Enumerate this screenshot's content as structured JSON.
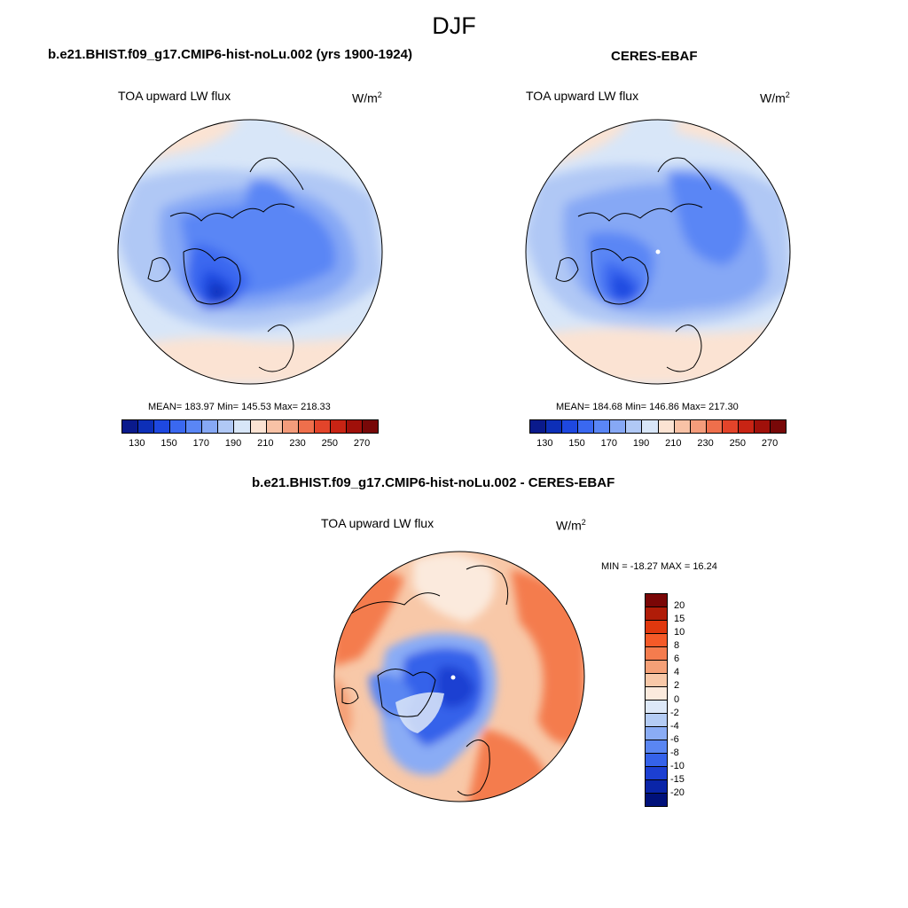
{
  "season": "DJF",
  "panels": [
    {
      "title": "b.e21.BHIST.f09_g17.CMIP6-hist-noLu.002 (yrs 1900-1924)",
      "variable": "TOA upward LW flux",
      "units_base": "W/m",
      "units_exp": "2",
      "stats": "MEAN= 183.97  Min= 145.53  Max= 218.33",
      "mean": 183.97,
      "min": 145.53,
      "max": 218.33
    },
    {
      "title": "CERES-EBAF",
      "variable": "TOA upward LW flux",
      "units_base": "W/m",
      "units_exp": "2",
      "stats": "MEAN= 184.68  Min= 146.86  Max= 217.30",
      "mean": 184.68,
      "min": 146.86,
      "max": 217.3
    }
  ],
  "colorbar": {
    "labels": [
      "130",
      "150",
      "170",
      "190",
      "210",
      "230",
      "250",
      "270"
    ],
    "colors": [
      "#0a1a8c",
      "#0d2fb8",
      "#1e48e0",
      "#3a68f0",
      "#5a86f5",
      "#86a8f5",
      "#b0c8f5",
      "#d8e6f8",
      "#fbe3d3",
      "#f8c2a6",
      "#f49c7b",
      "#ef6f4c",
      "#e3442a",
      "#c82414",
      "#a0100a",
      "#780808"
    ]
  },
  "diff": {
    "title": "b.e21.BHIST.f09_g17.CMIP6-hist-noLu.002 - CERES-EBAF",
    "variable": "TOA upward LW flux",
    "units_base": "W/m",
    "units_exp": "2",
    "stats": "MIN = -18.27 MAX =  16.24",
    "min": -18.27,
    "max": 16.24,
    "colorbar_labels": [
      "20",
      "15",
      "10",
      "8",
      "6",
      "4",
      "2",
      "0",
      "-2",
      "-4",
      "-6",
      "-8",
      "-10",
      "-15",
      "-20"
    ],
    "colorbar_colors": [
      "#7a0606",
      "#b01c08",
      "#e0380e",
      "#f55a28",
      "#f47c4e",
      "#f5a077",
      "#f8c8a8",
      "#fbeadd",
      "#dde8f8",
      "#b4ccf5",
      "#8aacf5",
      "#5a86f2",
      "#3562ea",
      "#1c3fd2",
      "#0a25a8",
      "#00117a"
    ]
  },
  "chart_data": {
    "type": "heatmap",
    "projection": "north polar stereographic",
    "season": "DJF",
    "fields": [
      {
        "name": "b.e21.BHIST.f09_g17.CMIP6-hist-noLu.002 (yrs 1900-1924)",
        "mean": 183.97,
        "min": 145.53,
        "max": 218.33,
        "color_levels": [
          130,
          140,
          150,
          160,
          170,
          180,
          190,
          200,
          210,
          220,
          230,
          240,
          250,
          260,
          270
        ]
      },
      {
        "name": "CERES-EBAF",
        "mean": 184.68,
        "min": 146.86,
        "max": 217.3,
        "color_levels": [
          130,
          140,
          150,
          160,
          170,
          180,
          190,
          200,
          210,
          220,
          230,
          240,
          250,
          260,
          270
        ]
      },
      {
        "name": "b.e21.BHIST.f09_g17.CMIP6-hist-noLu.002 - CERES-EBAF",
        "min": -18.27,
        "max": 16.24,
        "color_levels": [
          -20,
          -15,
          -10,
          -8,
          -6,
          -4,
          -2,
          0,
          2,
          4,
          6,
          8,
          10,
          15,
          20
        ]
      }
    ]
  }
}
